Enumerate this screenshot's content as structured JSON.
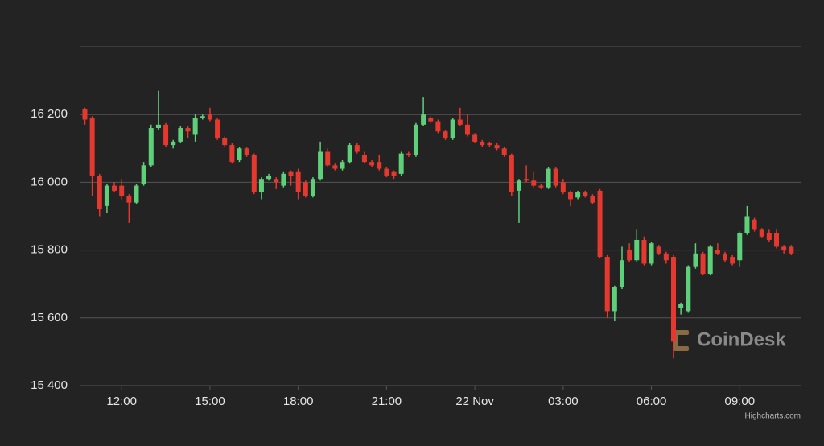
{
  "chart_data": {
    "type": "candlestick",
    "x": [
      -13.25,
      -13,
      -12.75,
      -12.5,
      -12.25,
      -12,
      -11.75,
      -11.5,
      -11.25,
      -11,
      -10.75,
      -10.5,
      -10.25,
      -10,
      -9.75,
      -9.5,
      -9.25,
      -9,
      -8.75,
      -8.5,
      -8.25,
      -8,
      -7.75,
      -7.5,
      -7.25,
      -7,
      -6.75,
      -6.5,
      -6.25,
      -6,
      -5.75,
      -5.5,
      -5.25,
      -5,
      -4.75,
      -4.5,
      -4.25,
      -4,
      -3.75,
      -3.5,
      -3.25,
      -3,
      -2.75,
      -2.5,
      -2.25,
      -2,
      -1.75,
      -1.5,
      -1.25,
      -1,
      -0.75,
      -0.5,
      -0.25,
      0,
      0.25,
      0.5,
      0.75,
      1,
      1.25,
      1.5,
      1.75,
      2,
      2.25,
      2.5,
      2.75,
      3,
      3.25,
      3.5,
      3.75,
      4,
      4.25,
      4.5,
      4.75,
      5,
      5.25,
      5.5,
      5.75,
      6,
      6.25,
      6.5,
      6.75,
      7,
      7.25,
      7.5,
      7.75,
      8,
      8.25,
      8.5,
      8.75,
      9,
      9.25,
      9.5,
      9.75,
      10,
      10.25,
      10.5,
      10.75
    ],
    "open": [
      16215,
      16190,
      16020,
      15930,
      15990,
      15990,
      15960,
      15940,
      15995,
      16050,
      16160,
      16170,
      16110,
      16120,
      16160,
      16140,
      16190,
      16200,
      16185,
      16130,
      16110,
      16065,
      16100,
      16080,
      15970,
      16010,
      16010,
      15990,
      16030,
      16030,
      16000,
      15960,
      16010,
      16090,
      16050,
      16040,
      16060,
      16110,
      16080,
      16060,
      16060,
      16040,
      16030,
      16025,
      16085,
      16080,
      16170,
      16190,
      16180,
      16150,
      16130,
      16185,
      16170,
      16140,
      16120,
      16115,
      16110,
      16100,
      16080,
      15975,
      16010,
      16005,
      15990,
      15985,
      16040,
      16000,
      15970,
      15955,
      15970,
      15960,
      15975,
      15780,
      15620,
      15690,
      15800,
      15770,
      15830,
      15760,
      15810,
      15790,
      15780,
      15630,
      15620,
      15750,
      15790,
      15730,
      15800,
      15790,
      15780,
      15770,
      15850,
      15890,
      15860,
      15850,
      15850,
      15810,
      15810
    ],
    "high": [
      16220,
      16195,
      16025,
      15995,
      16000,
      16010,
      15965,
      15995,
      16060,
      16170,
      16270,
      16175,
      16125,
      16165,
      16165,
      16200,
      16200,
      16220,
      16190,
      16135,
      16115,
      16105,
      16105,
      16085,
      16015,
      16025,
      16015,
      16030,
      16035,
      16040,
      16005,
      16015,
      16120,
      16100,
      16055,
      16065,
      16115,
      16115,
      16090,
      16065,
      16080,
      16045,
      16035,
      16090,
      16090,
      16175,
      16250,
      16195,
      16185,
      16155,
      16190,
      16220,
      16200,
      16145,
      16125,
      16120,
      16115,
      16105,
      16085,
      16010,
      16050,
      16030,
      15995,
      16045,
      16045,
      16010,
      15975,
      15975,
      15975,
      15965,
      15980,
      15785,
      15695,
      15810,
      15820,
      15860,
      15840,
      15825,
      15815,
      15795,
      15785,
      15645,
      15755,
      15820,
      15795,
      15815,
      15820,
      15795,
      15785,
      15855,
      15930,
      15895,
      15865,
      15860,
      15860,
      15815,
      15815
    ],
    "low": [
      16170,
      15960,
      15900,
      15910,
      15970,
      15950,
      15880,
      15935,
      15990,
      16045,
      16155,
      16105,
      16100,
      16115,
      16130,
      16120,
      16185,
      16180,
      16125,
      16105,
      16055,
      16060,
      16075,
      15965,
      15950,
      16005,
      15980,
      15985,
      15990,
      15950,
      15955,
      15955,
      16005,
      16045,
      16035,
      16035,
      16055,
      16085,
      16055,
      16045,
      16035,
      16015,
      16010,
      16020,
      16075,
      16075,
      16165,
      16175,
      16145,
      16125,
      16125,
      16165,
      16135,
      16115,
      16105,
      16105,
      16095,
      16075,
      15960,
      15880,
      16000,
      15985,
      15980,
      15980,
      15985,
      15965,
      15930,
      15950,
      15955,
      15935,
      15775,
      15600,
      15590,
      15685,
      15765,
      15765,
      15755,
      15755,
      15785,
      15760,
      15480,
      15610,
      15615,
      15745,
      15725,
      15725,
      15785,
      15765,
      15755,
      15750,
      15845,
      15855,
      15835,
      15825,
      15805,
      15790,
      15785
    ],
    "close": [
      16185,
      16020,
      15920,
      15990,
      15975,
      15960,
      15940,
      15990,
      16050,
      16160,
      16170,
      16110,
      16120,
      16160,
      16150,
      16190,
      16195,
      16185,
      16130,
      16110,
      16060,
      16100,
      16080,
      15970,
      16010,
      16020,
      16000,
      16025,
      16020,
      15970,
      15960,
      16010,
      16090,
      16050,
      16040,
      16060,
      16110,
      16090,
      16060,
      16050,
      16040,
      16020,
      16020,
      16085,
      16080,
      16170,
      16200,
      16180,
      16150,
      16130,
      16185,
      16170,
      16140,
      16120,
      16110,
      16110,
      16100,
      16080,
      15970,
      16005,
      16005,
      15990,
      15985,
      16040,
      15990,
      15970,
      15950,
      15970,
      15960,
      15940,
      15780,
      15620,
      15690,
      15770,
      15770,
      15830,
      15760,
      15820,
      15790,
      15770,
      15530,
      15640,
      15750,
      15790,
      15730,
      15810,
      15790,
      15770,
      15760,
      15850,
      15900,
      15860,
      15840,
      15830,
      15810,
      15800,
      15790
    ],
    "up_color": "#5fd07a",
    "down_color": "#e5382e",
    "xlim": [
      -13.4,
      11.07
    ],
    "xticks": [
      {
        "value": -12,
        "label": "12:00"
      },
      {
        "value": -9,
        "label": "15:00"
      },
      {
        "value": -6,
        "label": "18:00"
      },
      {
        "value": -3,
        "label": "21:00"
      },
      {
        "value": 0,
        "label": "22 Nov"
      },
      {
        "value": 3,
        "label": "03:00"
      },
      {
        "value": 6,
        "label": "06:00"
      },
      {
        "value": 9,
        "label": "09:00"
      }
    ],
    "ylim": [
      15400,
      16400
    ],
    "yticks": [
      {
        "value": 15400,
        "label": "15 400"
      },
      {
        "value": 15600,
        "label": "15 600"
      },
      {
        "value": 15800,
        "label": "15 800"
      },
      {
        "value": 16000,
        "label": "16 000"
      },
      {
        "value": 16200,
        "label": "16 200"
      }
    ],
    "grid": true,
    "watermark": "CoinDesk",
    "credits": "Highcharts.com"
  }
}
